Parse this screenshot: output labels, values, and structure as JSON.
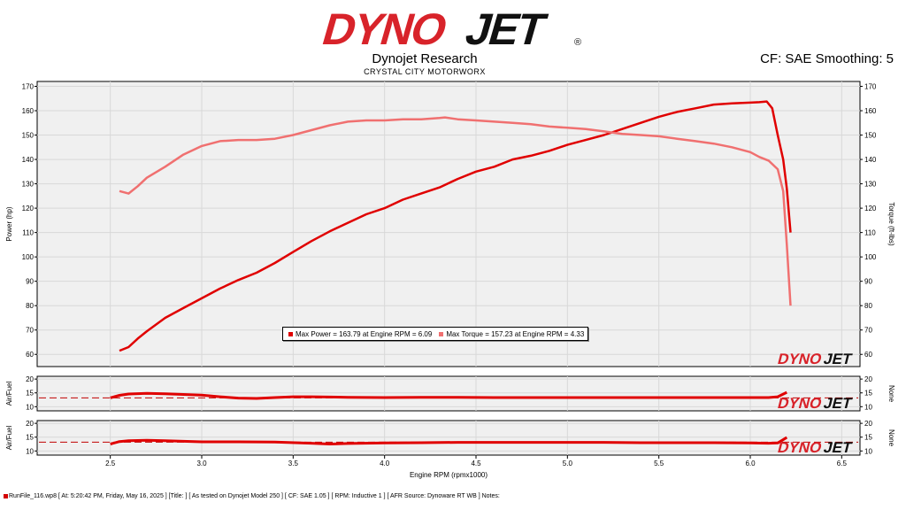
{
  "brand": {
    "logo_text": "DYNOJET",
    "company": "Dynojet Research",
    "shop": "CRYSTAL CITY MOTORWORX",
    "correction": "CF: SAE Smoothing: 5"
  },
  "colors": {
    "power": "#e00000",
    "torque": "#f07070",
    "afr1": "#e00000",
    "afr2": "#e00000",
    "target": "#c00000",
    "grid": "#d8d8d8",
    "plot_bg": "#f0f0f0"
  },
  "chart_data": [
    {
      "type": "line",
      "name": "power-torque",
      "xlabel": "",
      "ylabel_left": "Power (hp)",
      "ylabel_right": "Torque (ft-lbs)",
      "xlim": [
        2.1,
        6.6
      ],
      "ylim": [
        55,
        172
      ],
      "yticks": [
        60,
        70,
        80,
        90,
        100,
        110,
        120,
        130,
        140,
        150,
        160,
        170
      ],
      "legend": "center",
      "legend_entries": [
        "Max Power = 163.79 at Engine RPM = 6.09",
        "Max Torque = 157.23 at Engine RPM = 4.33"
      ],
      "series": [
        {
          "name": "Power",
          "x": [
            2.55,
            2.6,
            2.65,
            2.7,
            2.8,
            2.9,
            3.0,
            3.1,
            3.2,
            3.3,
            3.4,
            3.5,
            3.6,
            3.7,
            3.8,
            3.9,
            4.0,
            4.1,
            4.2,
            4.3,
            4.4,
            4.5,
            4.6,
            4.7,
            4.8,
            4.9,
            5.0,
            5.1,
            5.2,
            5.3,
            5.4,
            5.5,
            5.6,
            5.7,
            5.8,
            5.9,
            6.0,
            6.05,
            6.09,
            6.12,
            6.15,
            6.18,
            6.2,
            6.22
          ],
          "values": [
            61.5,
            63,
            66.5,
            69.5,
            75,
            79,
            83,
            87,
            90.5,
            93.5,
            97.5,
            102,
            106.5,
            110.5,
            114,
            117.5,
            120,
            123.5,
            126,
            128.5,
            132,
            135,
            137,
            140,
            141.5,
            143.5,
            146,
            148,
            150,
            152.5,
            155,
            157.5,
            159.5,
            161,
            162.5,
            163,
            163.3,
            163.5,
            163.79,
            161,
            150,
            140,
            128,
            110
          ]
        },
        {
          "name": "Torque",
          "x": [
            2.55,
            2.6,
            2.65,
            2.7,
            2.8,
            2.9,
            3.0,
            3.1,
            3.2,
            3.3,
            3.4,
            3.5,
            3.6,
            3.7,
            3.8,
            3.9,
            4.0,
            4.1,
            4.2,
            4.3,
            4.33,
            4.4,
            4.5,
            4.6,
            4.7,
            4.8,
            4.9,
            5.0,
            5.1,
            5.2,
            5.3,
            5.4,
            5.5,
            5.6,
            5.7,
            5.8,
            5.9,
            6.0,
            6.05,
            6.1,
            6.15,
            6.18,
            6.2,
            6.22
          ],
          "values": [
            127,
            126,
            129,
            132.5,
            137,
            142,
            145.5,
            147.5,
            148,
            148,
            148.5,
            150,
            152,
            154,
            155.5,
            156,
            156,
            156.5,
            156.5,
            157,
            157.23,
            156.5,
            156,
            155.5,
            155,
            154.5,
            153.5,
            153,
            152.5,
            151.5,
            150.5,
            150,
            149.5,
            148.5,
            147.5,
            146.5,
            145,
            143,
            141,
            139.5,
            136,
            127,
            105,
            80
          ]
        }
      ]
    },
    {
      "type": "line",
      "name": "air-fuel-1",
      "xlabel": "",
      "ylabel_left": "Air/Fuel",
      "ylabel_right": "None",
      "xlim": [
        2.1,
        6.6
      ],
      "ylim": [
        8.5,
        21
      ],
      "yticks": [
        10,
        15,
        20
      ],
      "target": 13.2,
      "series": [
        {
          "name": "Air/Fuel",
          "x": [
            2.5,
            2.55,
            2.6,
            2.7,
            2.8,
            3.0,
            3.1,
            3.2,
            3.3,
            3.4,
            3.5,
            3.6,
            3.7,
            3.8,
            4.0,
            4.2,
            4.4,
            4.6,
            4.8,
            5.0,
            5.2,
            5.4,
            5.6,
            5.8,
            6.0,
            6.1,
            6.15,
            6.2
          ],
          "values": [
            13.2,
            14.1,
            14.6,
            14.8,
            14.7,
            14.2,
            13.6,
            13.1,
            13.0,
            13.3,
            13.6,
            13.6,
            13.5,
            13.4,
            13.3,
            13.4,
            13.4,
            13.3,
            13.3,
            13.3,
            13.3,
            13.3,
            13.3,
            13.3,
            13.3,
            13.3,
            13.6,
            15.2
          ]
        }
      ]
    },
    {
      "type": "line",
      "name": "air-fuel-2",
      "xlabel": "Engine RPM (rpmx1000)",
      "ylabel_left": "Air/Fuel",
      "ylabel_right": "None",
      "xlim": [
        2.1,
        6.6
      ],
      "ylim": [
        8.5,
        21
      ],
      "yticks": [
        10,
        15,
        20
      ],
      "xticks": [
        2.5,
        3.0,
        3.5,
        4.0,
        4.5,
        5.0,
        5.5,
        6.0,
        6.5
      ],
      "xticklabels": [
        "2.5",
        "3.0",
        "3.5",
        "4.0",
        "4.5",
        "5.0",
        "5.5",
        "6.0",
        "6.5"
      ],
      "target": 13.2,
      "series": [
        {
          "name": "Air/Fuel",
          "x": [
            2.5,
            2.55,
            2.6,
            2.7,
            2.8,
            3.0,
            3.2,
            3.4,
            3.6,
            3.7,
            3.8,
            4.0,
            4.2,
            4.4,
            4.6,
            4.8,
            5.0,
            5.2,
            5.4,
            5.6,
            5.8,
            6.0,
            6.1,
            6.15,
            6.2
          ],
          "values": [
            12.5,
            13.4,
            13.7,
            13.9,
            13.7,
            13.3,
            13.3,
            13.2,
            12.8,
            12.5,
            12.7,
            12.9,
            13.0,
            13.1,
            13.1,
            13.1,
            13.1,
            13.1,
            13.0,
            13.0,
            13.0,
            12.9,
            12.8,
            12.9,
            14.9
          ]
        }
      ]
    }
  ],
  "footer": "RunFile_116.wp8 [ At: 5:20:42 PM, Friday, May 16, 2025 ] [Title: ]  [ As tested on Dynojet Model 250 ] [ CF: SAE 1.05 ] [ RPM: Inductive 1 ] [ AFR Source: Dynoware RT WB ] Notes:"
}
